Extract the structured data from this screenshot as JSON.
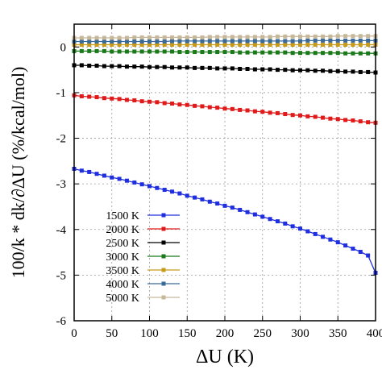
{
  "chart_data": {
    "type": "line",
    "title": "",
    "xlabel": "ΔU (K)",
    "ylabel": "100/k * dk/∂ΔU (%/kcal/mol)",
    "xlim": [
      0,
      400
    ],
    "ylim": [
      -6,
      0.5
    ],
    "xticks": [
      0,
      50,
      100,
      150,
      200,
      250,
      300,
      350,
      400
    ],
    "xtick_labels": [
      "0",
      "50",
      "100",
      "150",
      "200",
      "250",
      "300",
      "350",
      "400"
    ],
    "yticks": [
      0,
      -1,
      -2,
      -3,
      -4,
      -5,
      -6
    ],
    "ytick_labels": [
      "0",
      "-1",
      "-2",
      "-3",
      "-4",
      "-5",
      "-6"
    ],
    "grid": true,
    "legend_position": "bottom-left",
    "x": [
      0,
      10,
      20,
      30,
      40,
      50,
      60,
      70,
      80,
      90,
      100,
      110,
      120,
      130,
      140,
      150,
      160,
      170,
      180,
      190,
      200,
      210,
      220,
      230,
      240,
      250,
      260,
      270,
      280,
      290,
      300,
      310,
      320,
      330,
      340,
      350,
      360,
      370,
      380,
      390,
      400
    ],
    "series": [
      {
        "name": "1500 K",
        "color": "#1f2fe0",
        "values": [
          -2.67,
          -2.71,
          -2.74,
          -2.78,
          -2.82,
          -2.86,
          -2.89,
          -2.93,
          -2.97,
          -3.01,
          -3.05,
          -3.09,
          -3.13,
          -3.17,
          -3.21,
          -3.26,
          -3.3,
          -3.34,
          -3.39,
          -3.43,
          -3.48,
          -3.52,
          -3.57,
          -3.62,
          -3.67,
          -3.72,
          -3.77,
          -3.82,
          -3.87,
          -3.93,
          -3.98,
          -4.04,
          -4.1,
          -4.16,
          -4.22,
          -4.28,
          -4.35,
          -4.42,
          -4.49,
          -4.57,
          -4.95
        ]
      },
      {
        "name": "2000 K",
        "color": "#e01a1a",
        "values": [
          -1.06,
          -1.08,
          -1.09,
          -1.1,
          -1.12,
          -1.13,
          -1.14,
          -1.16,
          -1.17,
          -1.19,
          -1.2,
          -1.21,
          -1.23,
          -1.24,
          -1.26,
          -1.27,
          -1.29,
          -1.3,
          -1.32,
          -1.33,
          -1.35,
          -1.36,
          -1.38,
          -1.39,
          -1.41,
          -1.42,
          -1.44,
          -1.45,
          -1.47,
          -1.49,
          -1.5,
          -1.52,
          -1.53,
          -1.55,
          -1.57,
          -1.58,
          -1.6,
          -1.61,
          -1.63,
          -1.65,
          -1.66
        ]
      },
      {
        "name": "2500 K",
        "color": "#000000",
        "values": [
          -0.4,
          -0.4,
          -0.41,
          -0.41,
          -0.42,
          -0.42,
          -0.42,
          -0.43,
          -0.43,
          -0.43,
          -0.44,
          -0.44,
          -0.44,
          -0.45,
          -0.45,
          -0.45,
          -0.46,
          -0.46,
          -0.46,
          -0.47,
          -0.47,
          -0.47,
          -0.48,
          -0.48,
          -0.49,
          -0.49,
          -0.49,
          -0.5,
          -0.5,
          -0.51,
          -0.51,
          -0.51,
          -0.52,
          -0.52,
          -0.53,
          -0.53,
          -0.54,
          -0.54,
          -0.55,
          -0.55,
          -0.56
        ]
      },
      {
        "name": "3000 K",
        "color": "#1a7a1a",
        "values": [
          -0.09,
          -0.09,
          -0.09,
          -0.09,
          -0.09,
          -0.1,
          -0.1,
          -0.1,
          -0.1,
          -0.1,
          -0.1,
          -0.1,
          -0.1,
          -0.1,
          -0.11,
          -0.11,
          -0.11,
          -0.11,
          -0.11,
          -0.11,
          -0.11,
          -0.11,
          -0.12,
          -0.12,
          -0.12,
          -0.12,
          -0.12,
          -0.12,
          -0.12,
          -0.13,
          -0.13,
          -0.13,
          -0.13,
          -0.13,
          -0.13,
          -0.13,
          -0.14,
          -0.14,
          -0.14,
          -0.14,
          -0.14
        ]
      },
      {
        "name": "3500 K",
        "color": "#c89a1a",
        "values": [
          0.05,
          0.05,
          0.05,
          0.05,
          0.05,
          0.05,
          0.05,
          0.05,
          0.05,
          0.05,
          0.05,
          0.05,
          0.05,
          0.05,
          0.05,
          0.05,
          0.05,
          0.05,
          0.05,
          0.05,
          0.05,
          0.05,
          0.05,
          0.05,
          0.05,
          0.05,
          0.05,
          0.05,
          0.05,
          0.05,
          0.05,
          0.05,
          0.05,
          0.05,
          0.05,
          0.05,
          0.05,
          0.05,
          0.05,
          0.05,
          0.05
        ]
      },
      {
        "name": "4000 K",
        "color": "#3a6a9a",
        "values": [
          0.12,
          0.12,
          0.12,
          0.12,
          0.12,
          0.12,
          0.12,
          0.12,
          0.12,
          0.12,
          0.12,
          0.12,
          0.12,
          0.13,
          0.13,
          0.13,
          0.13,
          0.13,
          0.13,
          0.13,
          0.13,
          0.13,
          0.13,
          0.13,
          0.13,
          0.13,
          0.13,
          0.13,
          0.13,
          0.13,
          0.13,
          0.14,
          0.14,
          0.14,
          0.14,
          0.14,
          0.14,
          0.14,
          0.14,
          0.14,
          0.14
        ]
      },
      {
        "name": "5000 K",
        "color": "#c8b89a",
        "values": [
          0.2,
          0.2,
          0.2,
          0.2,
          0.2,
          0.2,
          0.2,
          0.2,
          0.21,
          0.21,
          0.21,
          0.21,
          0.21,
          0.21,
          0.21,
          0.21,
          0.21,
          0.21,
          0.22,
          0.22,
          0.22,
          0.22,
          0.22,
          0.22,
          0.22,
          0.22,
          0.22,
          0.23,
          0.23,
          0.23,
          0.23,
          0.23,
          0.23,
          0.23,
          0.23,
          0.24,
          0.24,
          0.24,
          0.24,
          0.24,
          0.24
        ]
      }
    ]
  }
}
